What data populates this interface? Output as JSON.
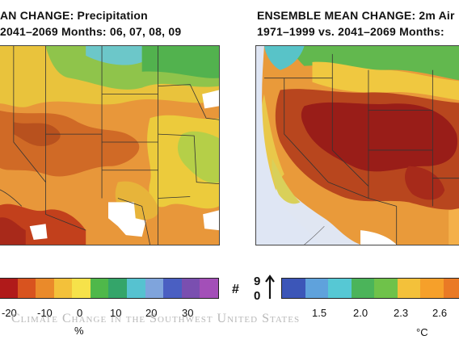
{
  "left_panel": {
    "title_line1": "AN CHANGE: Precipitation",
    "title_line2": "2041–2069 Months: 06, 07, 08, 09",
    "colorbar": {
      "colors": [
        "#b01a1a",
        "#d8531f",
        "#ea8a2a",
        "#f3c13a",
        "#f6e24a",
        "#4fb84a",
        "#34a56a",
        "#56c2d0",
        "#7fa4dc",
        "#4a5fc2",
        "#7a4fb0",
        "#a34fb8"
      ],
      "ticks": [
        "-20",
        "-10",
        "0",
        "10",
        "20",
        "30"
      ],
      "unit": "%",
      "extra_label": "#"
    }
  },
  "right_panel": {
    "title_line1": "ENSEMBLE MEAN CHANGE: 2m Air",
    "title_line2": "1971–1999 vs. 2041–2069 Months:",
    "legend_glyph_top": "9",
    "legend_glyph_bottom": "0",
    "colorbar": {
      "colors": [
        "#3c56b8",
        "#5fa2dc",
        "#56c8d4",
        "#4bb45a",
        "#6fc24a",
        "#f3c13a",
        "#f6a02a",
        "#ea7a25"
      ],
      "ticks": [
        "1.5",
        "2.0",
        "2.3",
        "2.6"
      ],
      "unit": "°C"
    }
  },
  "watermark": "Climate Change in the Southwest United States"
}
